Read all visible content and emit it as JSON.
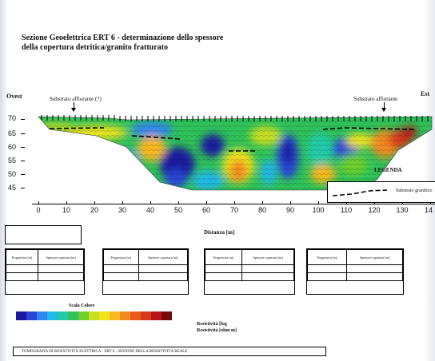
{
  "title": {
    "line1": "Sezione Geoelettrica ERT 6 - determinazione dello spessore",
    "line2": "della copertura detritica/granito fratturato"
  },
  "labels": {
    "west": "Ovest",
    "east": "Est",
    "marker_left": "Substrato affiorante (?)",
    "marker_right": "Substrato affiorante"
  },
  "y_axis": {
    "ticks": [
      "70",
      "65",
      "60",
      "55",
      "50",
      "45"
    ]
  },
  "x_axis": {
    "ticks": [
      "0",
      "10",
      "20",
      "30",
      "40",
      "50",
      "60",
      "70",
      "80",
      "90",
      "100",
      "110",
      "120",
      "130",
      "14"
    ],
    "title": "Distanza [m]"
  },
  "legend": {
    "title": "LEGENDA",
    "item": "Substrato granitico"
  },
  "note_box": "",
  "tables": [
    {
      "h1": "Progressiva [m]",
      "h2": "Spessore copertura [m]",
      "rows": [
        [
          "",
          ""
        ],
        [
          "",
          ""
        ]
      ]
    },
    {
      "h1": "Progressiva [m]",
      "h2": "Spessore copertura [m]",
      "rows": [
        [
          "",
          ""
        ],
        [
          "",
          ""
        ]
      ]
    },
    {
      "h1": "Progressiva [m]",
      "h2": "Spessore copertura [m]",
      "rows": [
        [
          "",
          ""
        ],
        [
          "",
          ""
        ]
      ]
    },
    {
      "h1": "Progressiva [m]",
      "h2": "Spessore copertura [m]",
      "rows": [
        [
          "",
          ""
        ],
        [
          "",
          ""
        ]
      ]
    }
  ],
  "scale": {
    "title": "Scala Colore",
    "colors": [
      "#1a1aa0",
      "#2a46d8",
      "#2f86f0",
      "#22b8e8",
      "#20c9a8",
      "#2fc25a",
      "#6ccf2a",
      "#c8de22",
      "#f2e31b",
      "#f6b81c",
      "#f28a22",
      "#e85a1e",
      "#d43a1a",
      "#b31414",
      "#7a0a0a"
    ]
  },
  "resistivity_note": {
    "line1": "Resistività [log",
    "line2": "Resistività [ohm m]"
  },
  "footer": "TOMOGRAFIA DI RESISTIVITÀ ELETTRICA - ERT 6 - SEZIONE DELLA RESISTIVITÀ REALE"
}
